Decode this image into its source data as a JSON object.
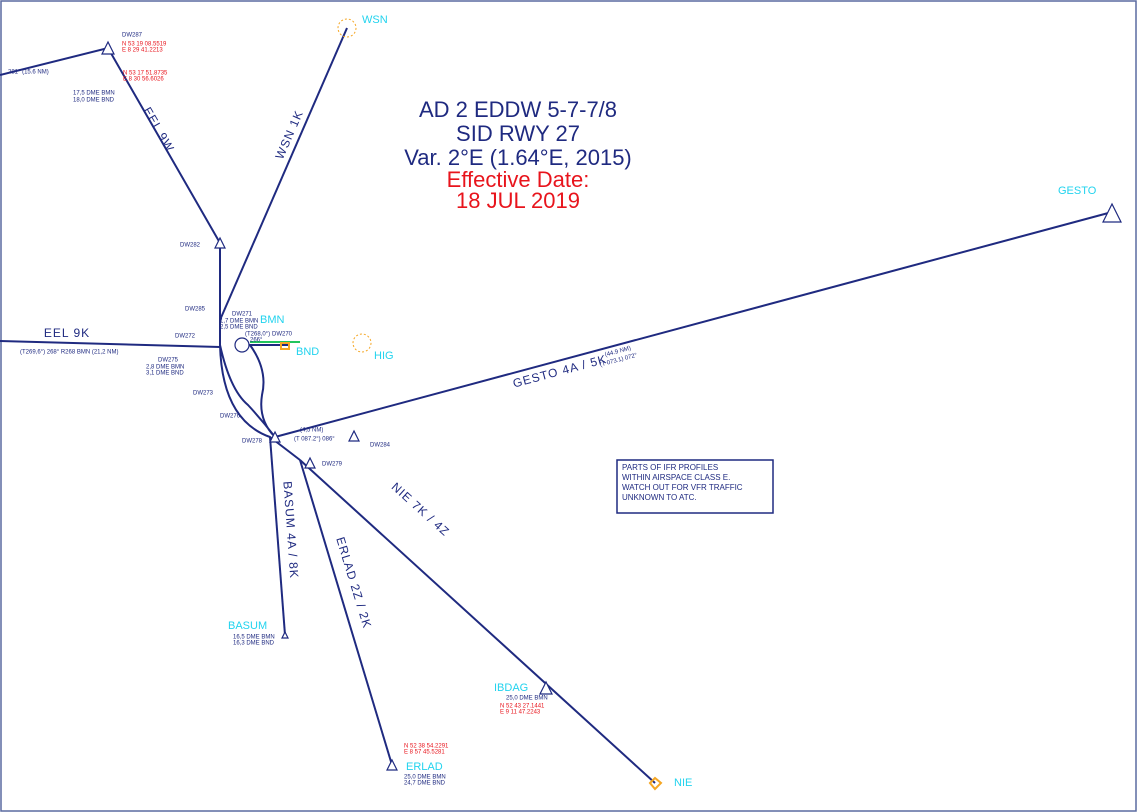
{
  "title": [
    "AD 2 EDDW 5-7-7/8",
    "SID RWY 27",
    "Var. 2°E (1.64°E, 2015)"
  ],
  "effective": [
    "Effective Date:",
    "18 JUL 2019"
  ],
  "routes": [
    "EEL 9W",
    "WSN 1K",
    "EEL 9K",
    "GESTO 4A / 5K",
    "BASUM 4A / 8K",
    "ERLAD 2Z / 2K",
    "NIE 7K / 4Z"
  ],
  "waypoints": [
    "WSN",
    "GESTO",
    "BMN",
    "BND",
    "HIG",
    "BASUM",
    "IBDAG",
    "ERLAD",
    "NIE"
  ],
  "fixes": [
    "DW287",
    "DW282",
    "DW285",
    "DW271",
    "DW272",
    "DW270",
    "DW275",
    "DW273",
    "DW276",
    "DW278",
    "DW279",
    "DW284"
  ],
  "dme": [
    "17,5 DME BMN",
    "18,0 DME BND",
    "1,7 DME BMN",
    "2,5 DME BND",
    "2,8 DME BMN",
    "3,1 DME BND",
    "16,5 DME BMN",
    "16,3 DME BND",
    "25,0 DME BMN",
    "25,0 DME BMN",
    "24,7 DME BND"
  ],
  "coords": [
    "N 53 19 08.5519",
    "E 8 29 41.2213",
    "N 53 17 51.8735",
    "E 8 30 56.6026",
    "N 52 43 27.1441",
    "E 9 11 47.2243",
    "N 52 38 54.2291",
    "E 8 57 45.5281"
  ],
  "tracks": [
    "281° (15.6 NM)",
    "(T269,6°) 268° R268 BMN (21,2 NM)",
    "(44.9 NM)",
    "(T 073.1) 072°",
    "(4,5 NM)",
    "(T 087.2°) 086°",
    "(T268,0°)",
    "266°"
  ],
  "note": [
    "PARTS OF IFR PROFILES",
    "WITHIN AIRSPACE CLASS E.",
    "WATCH OUT FOR VFR TRAFFIC",
    "UNKNOWN TO ATC."
  ]
}
